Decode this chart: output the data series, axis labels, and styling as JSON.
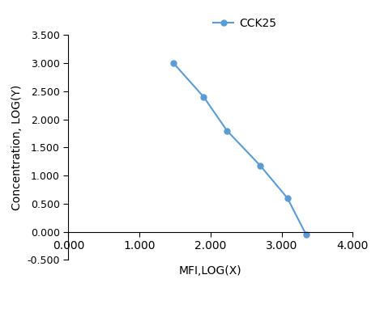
{
  "x": [
    1.477,
    1.903,
    2.23,
    2.699,
    3.079,
    3.342
  ],
  "y": [
    3.0,
    2.398,
    1.799,
    1.176,
    0.602,
    -0.046
  ],
  "line_color": "#5b9bd5",
  "marker": "o",
  "marker_size": 5,
  "legend_label": "CCK25",
  "xlabel": "MFI,LOG(X)",
  "ylabel": "Concentration, LOG(Y)",
  "xlim": [
    0.0,
    4.0
  ],
  "ylim": [
    -0.5,
    3.5
  ],
  "xticks": [
    0.0,
    1.0,
    2.0,
    3.0,
    4.0
  ],
  "yticks": [
    -0.5,
    0.0,
    0.5,
    1.0,
    1.5,
    2.0,
    2.5,
    3.0,
    3.5
  ],
  "xtick_labels": [
    "0.000",
    "1.000",
    "2.000",
    "3.000",
    "4.000"
  ],
  "ytick_labels": [
    "-0.500",
    "0.000",
    "0.500",
    "1.000",
    "1.500",
    "2.000",
    "2.500",
    "3.000",
    "3.500"
  ],
  "axis_label_fontsize": 10,
  "tick_fontsize": 9,
  "legend_fontsize": 10,
  "background_color": "#ffffff"
}
